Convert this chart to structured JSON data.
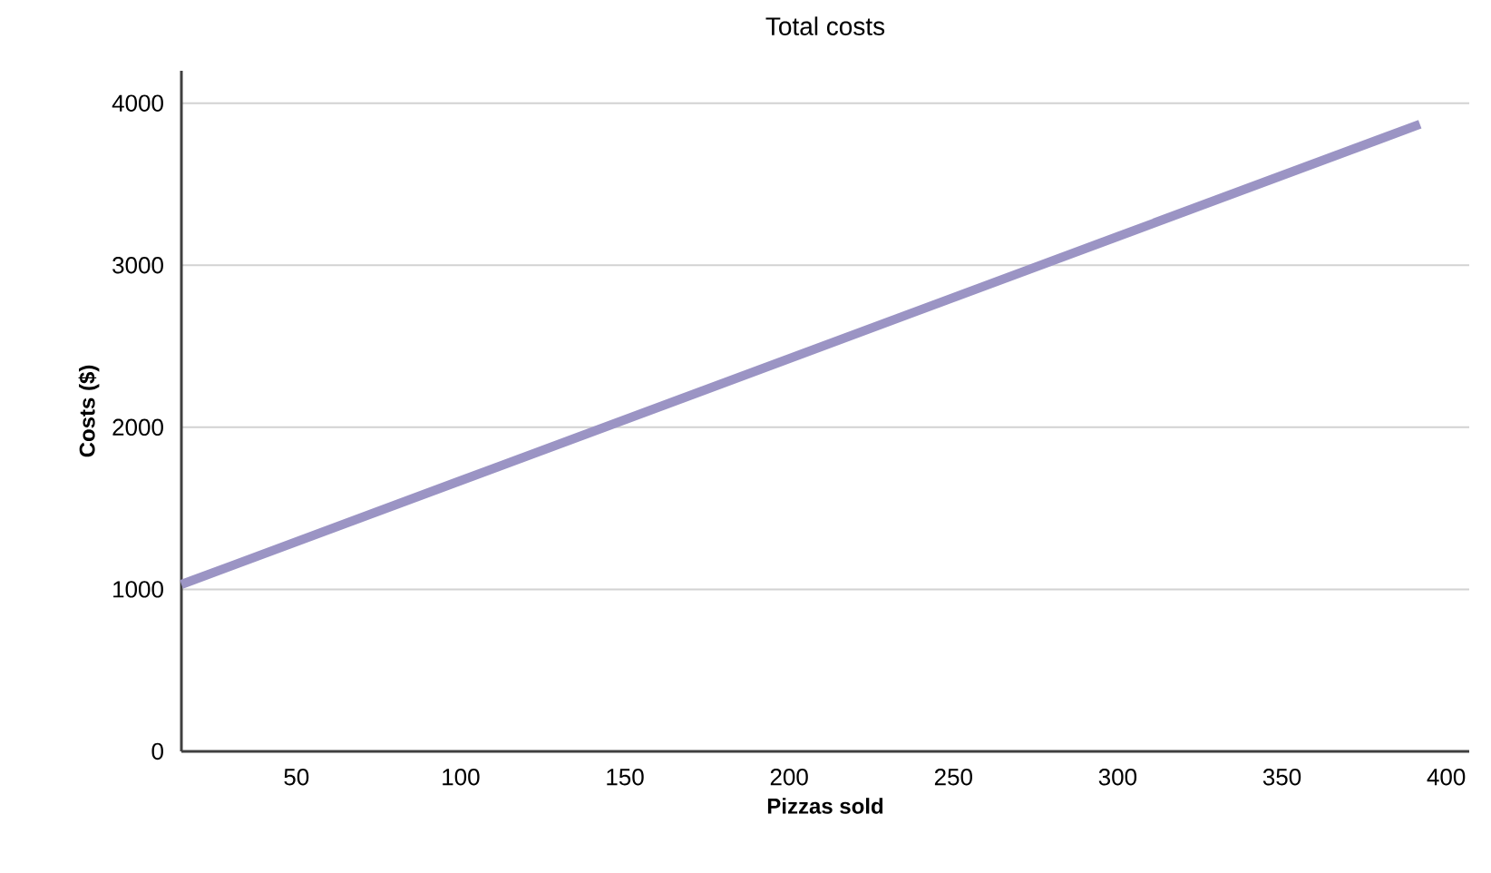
{
  "chart_data": {
    "type": "line",
    "title": "Total costs",
    "xlabel": "Pizzas sold",
    "ylabel": "Costs ($)",
    "series": [
      {
        "color": "#9b94c4",
        "x": [
          15,
          392
        ],
        "values": [
          1030,
          3870
        ]
      }
    ],
    "xlim": [
      15,
      407
    ],
    "ylim": [
      0,
      4200
    ],
    "xticks": [
      50,
      100,
      150,
      200,
      250,
      300,
      350,
      400
    ],
    "yticks": [
      0,
      1000,
      2000,
      3000,
      4000
    ],
    "grid": "y",
    "marker": "none",
    "line_style": "solid"
  }
}
